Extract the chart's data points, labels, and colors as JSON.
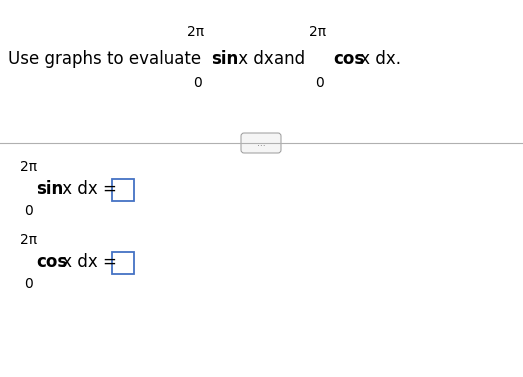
{
  "bg_color": "#ffffff",
  "text_color": "#000000",
  "integral_color": "#cc2200",
  "box_color": "#4472c4",
  "separator_color": "#b0b0b0",
  "upper_limit": "2π",
  "lower_limit": "0",
  "intro_text": "Use graphs to evaluate",
  "and_text": "and",
  "dots_text": "...",
  "figw": 5.23,
  "figh": 3.77,
  "dpi": 100
}
